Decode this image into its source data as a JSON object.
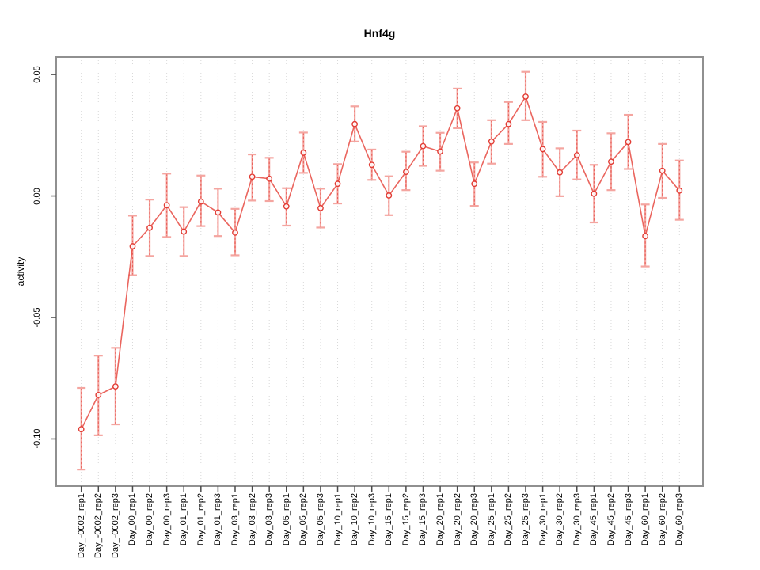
{
  "title": "Hnf4g",
  "chart_data": {
    "type": "line",
    "title": "Hnf4g",
    "xlabel": "",
    "ylabel": "activity",
    "legend": "none",
    "grid": "vertical dotted gridlines at every category; dotted horizontal line at y=0",
    "marker": "open-circle",
    "error_bars": true,
    "categories": [
      "Day_-0002_rep1",
      "Day_-0002_rep2",
      "Day_-0002_rep3",
      "Day_00_rep1",
      "Day_00_rep2",
      "Day_00_rep3",
      "Day_01_rep1",
      "Day_01_rep2",
      "Day_01_rep3",
      "Day_03_rep1",
      "Day_03_rep2",
      "Day_03_rep3",
      "Day_05_rep1",
      "Day_05_rep2",
      "Day_05_rep3",
      "Day_10_rep1",
      "Day_10_rep2",
      "Day_10_rep3",
      "Day_15_rep1",
      "Day_15_rep2",
      "Day_15_rep3",
      "Day_20_rep1",
      "Day_20_rep2",
      "Day_20_rep3",
      "Day_25_rep1",
      "Day_25_rep2",
      "Day_25_rep3",
      "Day_30_rep1",
      "Day_30_rep2",
      "Day_30_rep3",
      "Day_45_rep1",
      "Day_45_rep2",
      "Day_45_rep3",
      "Day_60_rep1",
      "Day_60_rep2",
      "Day_60_rep3"
    ],
    "series": [
      {
        "name": "activity",
        "values": [
          -0.096,
          -0.0819,
          -0.0784,
          -0.0207,
          -0.0131,
          -0.0038,
          -0.0147,
          -0.0023,
          -0.0068,
          -0.0151,
          0.0079,
          0.0071,
          -0.0043,
          0.0178,
          -0.005,
          0.005,
          0.0296,
          0.0128,
          0.0002,
          0.0099,
          0.0205,
          0.0183,
          0.0361,
          0.005,
          0.0224,
          0.0296,
          0.0409,
          0.0193,
          0.0097,
          0.0168,
          0.0009,
          0.0141,
          0.0222,
          -0.0165,
          0.0104,
          0.0022
        ],
        "err_lo": [
          -0.1126,
          -0.0985,
          -0.094,
          -0.0326,
          -0.0247,
          -0.0169,
          -0.0247,
          -0.0124,
          -0.0165,
          -0.0244,
          -0.0019,
          -0.0021,
          -0.0122,
          0.0095,
          -0.013,
          -0.0031,
          0.0224,
          0.0066,
          -0.0079,
          0.0024,
          0.0124,
          0.0104,
          0.0279,
          -0.0041,
          0.0133,
          0.0214,
          0.0312,
          0.0079,
          -0.0001,
          0.0068,
          -0.0109,
          0.0024,
          0.0111,
          -0.029,
          -0.0008,
          -0.0098
        ],
        "err_hi": [
          -0.079,
          -0.0657,
          -0.0625,
          -0.0081,
          -0.0015,
          0.0092,
          -0.0046,
          0.0084,
          0.003,
          -0.0053,
          0.0171,
          0.0157,
          0.0032,
          0.0261,
          0.003,
          0.0131,
          0.0369,
          0.0191,
          0.0081,
          0.0182,
          0.0287,
          0.026,
          0.0442,
          0.0138,
          0.0312,
          0.0387,
          0.0511,
          0.0305,
          0.0196,
          0.0269,
          0.0128,
          0.0258,
          0.0334,
          -0.0035,
          0.0214,
          0.0146
        ]
      }
    ],
    "yticks": [
      0.05,
      0.0,
      -0.05,
      -0.1
    ],
    "ytick_labels": [
      "0.05",
      "0.00",
      "-0.05",
      "-0.10"
    ],
    "ylim": [
      -0.1194,
      0.0572
    ],
    "colors": {
      "line": "#e64a42",
      "point": "#e23b33",
      "error_bar": "#f4a5a0",
      "grid": "#d8d8d8",
      "box": "#909090",
      "tick": "#4a4a4a",
      "text": "#000000",
      "background": "#ffffff"
    }
  }
}
